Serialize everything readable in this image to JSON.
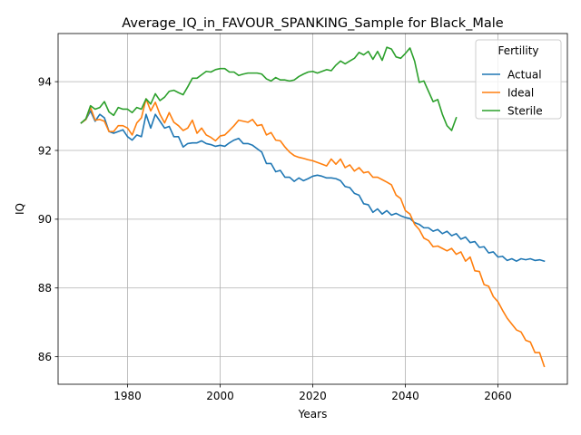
{
  "chart_data": {
    "type": "line",
    "title": "Average_IQ_in_FAVOUR_SPANKING_Sample for Black_Male",
    "xlabel": "Years",
    "ylabel": "IQ",
    "xlim": [
      1965,
      2075
    ],
    "ylim": [
      85.2,
      95.4
    ],
    "xticks": [
      1980,
      2000,
      2020,
      2040,
      2060
    ],
    "yticks": [
      86,
      88,
      90,
      92,
      94
    ],
    "grid": true,
    "legend": {
      "title": "Fertility",
      "placement": "top-right"
    },
    "series": [
      {
        "name": "Actual",
        "color": "#1f77b4",
        "x": [
          1970,
          1971,
          1972,
          1973,
          1974,
          1975,
          1976,
          1977,
          1978,
          1979,
          1980,
          1981,
          1982,
          1983,
          1984,
          1985,
          1986,
          1987,
          1988,
          1989,
          1990,
          1991,
          1992,
          1993,
          1994,
          1995,
          1996,
          1997,
          1998,
          1999,
          2000,
          2001,
          2002,
          2003,
          2004,
          2005,
          2006,
          2007,
          2008,
          2009,
          2010,
          2011,
          2012,
          2013,
          2014,
          2015,
          2016,
          2017,
          2018,
          2019,
          2020,
          2021,
          2022,
          2023,
          2024,
          2025,
          2026,
          2027,
          2028,
          2029,
          2030,
          2031,
          2032,
          2033,
          2034,
          2035,
          2036,
          2037,
          2038,
          2039,
          2040,
          2041,
          2042,
          2043,
          2044,
          2045,
          2046,
          2047,
          2048,
          2049,
          2050,
          2051,
          2052,
          2053,
          2054,
          2055,
          2056,
          2057,
          2058,
          2059,
          2060,
          2061,
          2062,
          2063,
          2064,
          2065,
          2066,
          2067,
          2068,
          2069,
          2070
        ],
        "values": [
          92.8,
          92.9,
          93.15,
          92.85,
          93.05,
          92.95,
          92.55,
          92.5,
          92.55,
          92.6,
          92.4,
          92.3,
          92.45,
          92.4,
          93.05,
          92.65,
          93.05,
          92.85,
          92.65,
          92.7,
          92.4,
          92.4,
          92.1,
          92.2,
          92.22,
          92.22,
          92.28,
          92.2,
          92.17,
          92.12,
          92.15,
          92.12,
          92.22,
          92.3,
          92.35,
          92.2,
          92.2,
          92.15,
          92.05,
          91.95,
          91.62,
          91.62,
          91.38,
          91.42,
          91.22,
          91.22,
          91.1,
          91.2,
          91.12,
          91.18,
          91.25,
          91.28,
          91.25,
          91.2,
          91.2,
          91.18,
          91.12,
          90.95,
          90.92,
          90.75,
          90.7,
          90.45,
          90.42,
          90.2,
          90.3,
          90.15,
          90.25,
          90.12,
          90.17,
          90.1,
          90.05,
          90.02,
          89.9,
          89.85,
          89.75,
          89.75,
          89.65,
          89.7,
          89.58,
          89.65,
          89.52,
          89.58,
          89.42,
          89.48,
          89.32,
          89.35,
          89.18,
          89.2,
          89.02,
          89.05,
          88.9,
          88.92,
          88.8,
          88.85,
          88.78,
          88.85,
          88.82,
          88.85,
          88.8,
          88.82,
          88.78
        ]
      },
      {
        "name": "Ideal",
        "color": "#ff7f0e",
        "x": [
          1970,
          1971,
          1972,
          1973,
          1974,
          1975,
          1976,
          1977,
          1978,
          1979,
          1980,
          1981,
          1982,
          1983,
          1984,
          1985,
          1986,
          1987,
          1988,
          1989,
          1990,
          1991,
          1992,
          1993,
          1994,
          1995,
          1996,
          1997,
          1998,
          1999,
          2000,
          2001,
          2002,
          2003,
          2004,
          2005,
          2006,
          2007,
          2008,
          2009,
          2010,
          2011,
          2012,
          2013,
          2014,
          2015,
          2016,
          2017,
          2018,
          2019,
          2020,
          2021,
          2022,
          2023,
          2024,
          2025,
          2026,
          2027,
          2028,
          2029,
          2030,
          2031,
          2032,
          2033,
          2034,
          2035,
          2036,
          2037,
          2038,
          2039,
          2040,
          2041,
          2042,
          2043,
          2044,
          2045,
          2046,
          2047,
          2048,
          2049,
          2050,
          2051,
          2052,
          2053,
          2054,
          2055,
          2056,
          2057,
          2058,
          2059,
          2060,
          2061,
          2062,
          2063,
          2064,
          2065,
          2066,
          2067,
          2068,
          2069,
          2070
        ],
        "values": [
          92.8,
          92.9,
          93.25,
          92.88,
          92.9,
          92.85,
          92.55,
          92.55,
          92.72,
          92.72,
          92.65,
          92.45,
          92.8,
          92.95,
          93.5,
          93.15,
          93.4,
          93.05,
          92.8,
          93.1,
          92.82,
          92.72,
          92.58,
          92.65,
          92.88,
          92.5,
          92.65,
          92.45,
          92.38,
          92.28,
          92.42,
          92.45,
          92.58,
          92.72,
          92.88,
          92.85,
          92.82,
          92.9,
          92.72,
          92.75,
          92.45,
          92.52,
          92.3,
          92.28,
          92.1,
          91.95,
          91.85,
          91.8,
          91.77,
          91.73,
          91.7,
          91.65,
          91.6,
          91.55,
          91.75,
          91.6,
          91.75,
          91.5,
          91.58,
          91.4,
          91.5,
          91.35,
          91.38,
          91.22,
          91.22,
          91.15,
          91.08,
          91.0,
          90.7,
          90.6,
          90.25,
          90.15,
          89.85,
          89.7,
          89.45,
          89.38,
          89.2,
          89.22,
          89.15,
          89.08,
          89.15,
          88.98,
          89.05,
          88.78,
          88.9,
          88.5,
          88.48,
          88.1,
          88.05,
          87.75,
          87.6,
          87.35,
          87.12,
          86.95,
          86.78,
          86.72,
          86.48,
          86.43,
          86.12,
          86.12,
          85.72
        ]
      },
      {
        "name": "Sterile",
        "color": "#2ca02c",
        "x": [
          1970,
          1971,
          1972,
          1973,
          1974,
          1975,
          1976,
          1977,
          1978,
          1979,
          1980,
          1981,
          1982,
          1983,
          1984,
          1985,
          1986,
          1987,
          1988,
          1989,
          1990,
          1991,
          1992,
          1993,
          1994,
          1995,
          1996,
          1997,
          1998,
          1999,
          2000,
          2001,
          2002,
          2003,
          2004,
          2005,
          2006,
          2007,
          2008,
          2009,
          2010,
          2011,
          2012,
          2013,
          2014,
          2015,
          2016,
          2017,
          2018,
          2019,
          2020,
          2021,
          2022,
          2023,
          2024,
          2025,
          2026,
          2027,
          2028,
          2029,
          2030,
          2031,
          2032,
          2033,
          2034,
          2035,
          2036,
          2037,
          2038,
          2039,
          2040,
          2041,
          2042,
          2043,
          2044,
          2045,
          2046,
          2047,
          2048,
          2049,
          2050,
          2051
        ],
        "values": [
          92.8,
          92.92,
          93.3,
          93.2,
          93.25,
          93.42,
          93.12,
          93.02,
          93.25,
          93.2,
          93.2,
          93.1,
          93.25,
          93.2,
          93.5,
          93.35,
          93.65,
          93.45,
          93.55,
          93.72,
          93.75,
          93.68,
          93.62,
          93.85,
          94.1,
          94.1,
          94.2,
          94.3,
          94.28,
          94.35,
          94.38,
          94.38,
          94.28,
          94.28,
          94.18,
          94.22,
          94.25,
          94.25,
          94.25,
          94.22,
          94.08,
          94.02,
          94.12,
          94.05,
          94.05,
          94.02,
          94.05,
          94.15,
          94.22,
          94.28,
          94.3,
          94.25,
          94.3,
          94.35,
          94.32,
          94.48,
          94.6,
          94.52,
          94.6,
          94.68,
          94.85,
          94.78,
          94.88,
          94.65,
          94.88,
          94.62,
          95.0,
          94.95,
          94.72,
          94.68,
          94.82,
          94.98,
          94.6,
          93.98,
          94.02,
          93.72,
          93.42,
          93.48,
          93.05,
          92.72,
          92.58,
          92.95
        ]
      }
    ]
  }
}
